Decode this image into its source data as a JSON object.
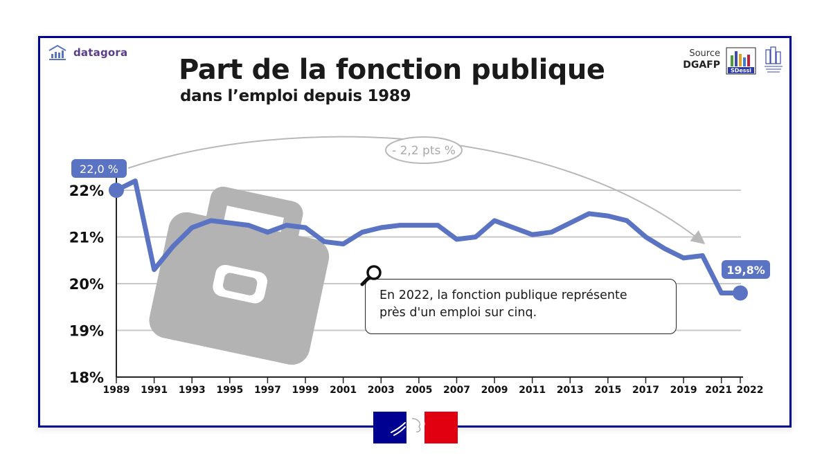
{
  "brand": {
    "name": "datagora",
    "icon": "bar-chart-house-icon"
  },
  "title": "Part de la fonction publique",
  "subtitle": "dans l’emploi depuis 1989",
  "source": {
    "label": "Source",
    "name": "DGAFP",
    "logos": [
      "SDessi",
      "statistique-publique"
    ]
  },
  "sdessi_label": "SDessi",
  "callout": {
    "line1": "En 2022, la fonction publique représente",
    "line2": "près d'un emploi sur cinq.",
    "icon": "magnifier-icon"
  },
  "annotation": {
    "start_label": "22,0 %",
    "end_label": "19,8%",
    "delta_label": "- 2,2 pts %"
  },
  "colors": {
    "line": "#5a73c2",
    "frame": "#000091",
    "grid": "#c8c8c8",
    "briefcase": "#b3b3b3",
    "flag_blue": "#000091",
    "flag_red": "#e1000f"
  },
  "chart_data": {
    "type": "line",
    "x": [
      1989,
      1990,
      1991,
      1992,
      1993,
      1994,
      1995,
      1996,
      1997,
      1998,
      1999,
      2000,
      2001,
      2002,
      2003,
      2004,
      2005,
      2006,
      2007,
      2008,
      2009,
      2010,
      2011,
      2012,
      2013,
      2014,
      2015,
      2016,
      2017,
      2018,
      2019,
      2020,
      2021,
      2022
    ],
    "series": [
      {
        "values": [
          22.0,
          22.2,
          20.3,
          20.8,
          21.2,
          21.35,
          21.3,
          21.25,
          21.1,
          21.25,
          21.2,
          20.9,
          20.85,
          21.1,
          21.2,
          21.25,
          21.25,
          21.25,
          20.95,
          21.0,
          21.35,
          21.2,
          21.05,
          21.1,
          21.3,
          21.5,
          21.45,
          21.35,
          21.0,
          20.75,
          20.55,
          20.6,
          19.8,
          19.8
        ]
      }
    ],
    "x_tick_labels": [
      "1989",
      "1991",
      "1993",
      "1995",
      "1997",
      "1999",
      "2001",
      "2003",
      "2005",
      "2007",
      "2009",
      "2011",
      "2013",
      "2015",
      "2017",
      "2019",
      "2021",
      "2022"
    ],
    "y_tick_labels": [
      "18%",
      "19%",
      "20%",
      "21%",
      "22%"
    ],
    "ylim": [
      18,
      22
    ],
    "grid": "horizontal"
  }
}
